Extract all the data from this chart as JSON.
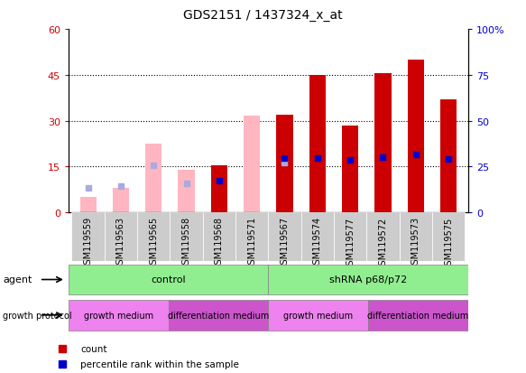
{
  "title": "GDS2151 / 1437324_x_at",
  "samples": [
    "GSM119559",
    "GSM119563",
    "GSM119565",
    "GSM119558",
    "GSM119568",
    "GSM119571",
    "GSM119567",
    "GSM119574",
    "GSM119577",
    "GSM119572",
    "GSM119573",
    "GSM119575"
  ],
  "count_values": [
    null,
    null,
    null,
    null,
    15.5,
    null,
    32.0,
    45.0,
    28.5,
    45.5,
    50.0,
    37.0
  ],
  "rank_values": [
    null,
    null,
    null,
    null,
    17.0,
    null,
    29.5,
    29.8,
    28.5,
    30.2,
    31.5,
    29.0
  ],
  "absent_value": [
    5.0,
    8.0,
    22.5,
    14.0,
    null,
    31.5,
    31.5,
    null,
    null,
    null,
    null,
    null
  ],
  "absent_rank": [
    13.5,
    14.2,
    25.5,
    16.0,
    null,
    null,
    27.0,
    null,
    null,
    null,
    null,
    null
  ],
  "left_ylim": [
    0,
    60
  ],
  "right_ylim": [
    0,
    100
  ],
  "left_yticks": [
    0,
    15,
    30,
    45,
    60
  ],
  "right_yticks": [
    0,
    25,
    50,
    75,
    100
  ],
  "agent_groups": [
    {
      "label": "control",
      "start": 0,
      "end": 6,
      "color": "#90ee90"
    },
    {
      "label": "shRNA p68/p72",
      "start": 6,
      "end": 12,
      "color": "#90ee90"
    }
  ],
  "growth_groups": [
    {
      "label": "growth medium",
      "start": 0,
      "end": 3,
      "color": "#ee82ee"
    },
    {
      "label": "differentiation medium",
      "start": 3,
      "end": 6,
      "color": "#cc55cc"
    },
    {
      "label": "growth medium",
      "start": 6,
      "end": 9,
      "color": "#ee82ee"
    },
    {
      "label": "differentiation medium",
      "start": 9,
      "end": 12,
      "color": "#cc55cc"
    }
  ],
  "bar_color_red": "#cc0000",
  "bar_color_pink": "#ffb6c1",
  "bar_color_blue": "#0000cc",
  "bar_color_lightblue": "#aaaadd",
  "bar_width": 0.5,
  "bg_color": "#ffffff",
  "label_color_left": "#cc0000",
  "label_color_right": "#0000cc",
  "xtick_bg": "#cccccc",
  "scale": 0.6
}
